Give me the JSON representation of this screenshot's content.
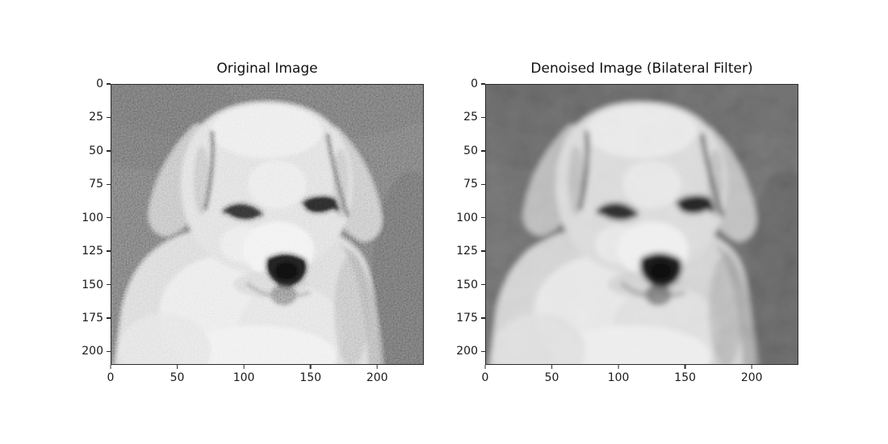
{
  "figure": {
    "background": "#ffffff",
    "panels": [
      {
        "id": "original",
        "title": "Original Image",
        "y_ticks": [
          0,
          25,
          50,
          75,
          100,
          125,
          150,
          175,
          200
        ],
        "x_ticks": [
          0,
          50,
          100,
          150,
          200
        ]
      },
      {
        "id": "denoised",
        "title": "Denoised Image (Bilateral Filter)",
        "y_ticks": [
          0,
          25,
          50,
          75,
          100,
          125,
          150,
          175,
          200
        ],
        "x_ticks": [
          0,
          50,
          100,
          150,
          200
        ]
      }
    ],
    "colors": {
      "figure_bg": "#ffffff",
      "text": "#1a1a1a",
      "spine": "#2b2b2b",
      "image_background_gray": "#6d6d6d",
      "fur_light_gray": "#dcdcdc",
      "eye_nose_dark": "#1f1f1f"
    }
  },
  "chart_data": [
    {
      "type": "heatmap",
      "subtype": "grayscale_image_imshow",
      "title": "Original Image",
      "xlabel": "",
      "ylabel": "",
      "x_ticks": [
        0,
        50,
        100,
        150,
        200
      ],
      "y_ticks": [
        0,
        25,
        50,
        75,
        100,
        125,
        150,
        175,
        200
      ],
      "x_range": [
        0,
        235
      ],
      "y_range": [
        0,
        210
      ],
      "y_axis_direction": "inverted (origin at top-left, image row index)",
      "colormap": "gray",
      "grid": false,
      "legend": null,
      "content_description": "Grayscale photograph of a white/light-furred puppy (head, floppy ears with dark inner-edge streaks, dark eyes, large dark nose, white chest) centered on a mid-gray background, heavily corrupted with fine speckle/gaussian noise"
    },
    {
      "type": "heatmap",
      "subtype": "grayscale_image_imshow",
      "title": "Denoised Image (Bilateral Filter)",
      "xlabel": "",
      "ylabel": "",
      "x_ticks": [
        0,
        50,
        100,
        150,
        200
      ],
      "y_ticks": [
        0,
        25,
        50,
        75,
        100,
        125,
        150,
        175,
        200
      ],
      "x_range": [
        0,
        235
      ],
      "y_range": [
        0,
        210
      ],
      "y_axis_direction": "inverted (origin at top-left, image row index)",
      "colormap": "gray",
      "grid": false,
      "legend": null,
      "content_description": "Same puppy photograph after bilateral filtering: noise removed, smooth blotchy regions, edges (eyes, nose, ear streaks) preserved"
    }
  ]
}
